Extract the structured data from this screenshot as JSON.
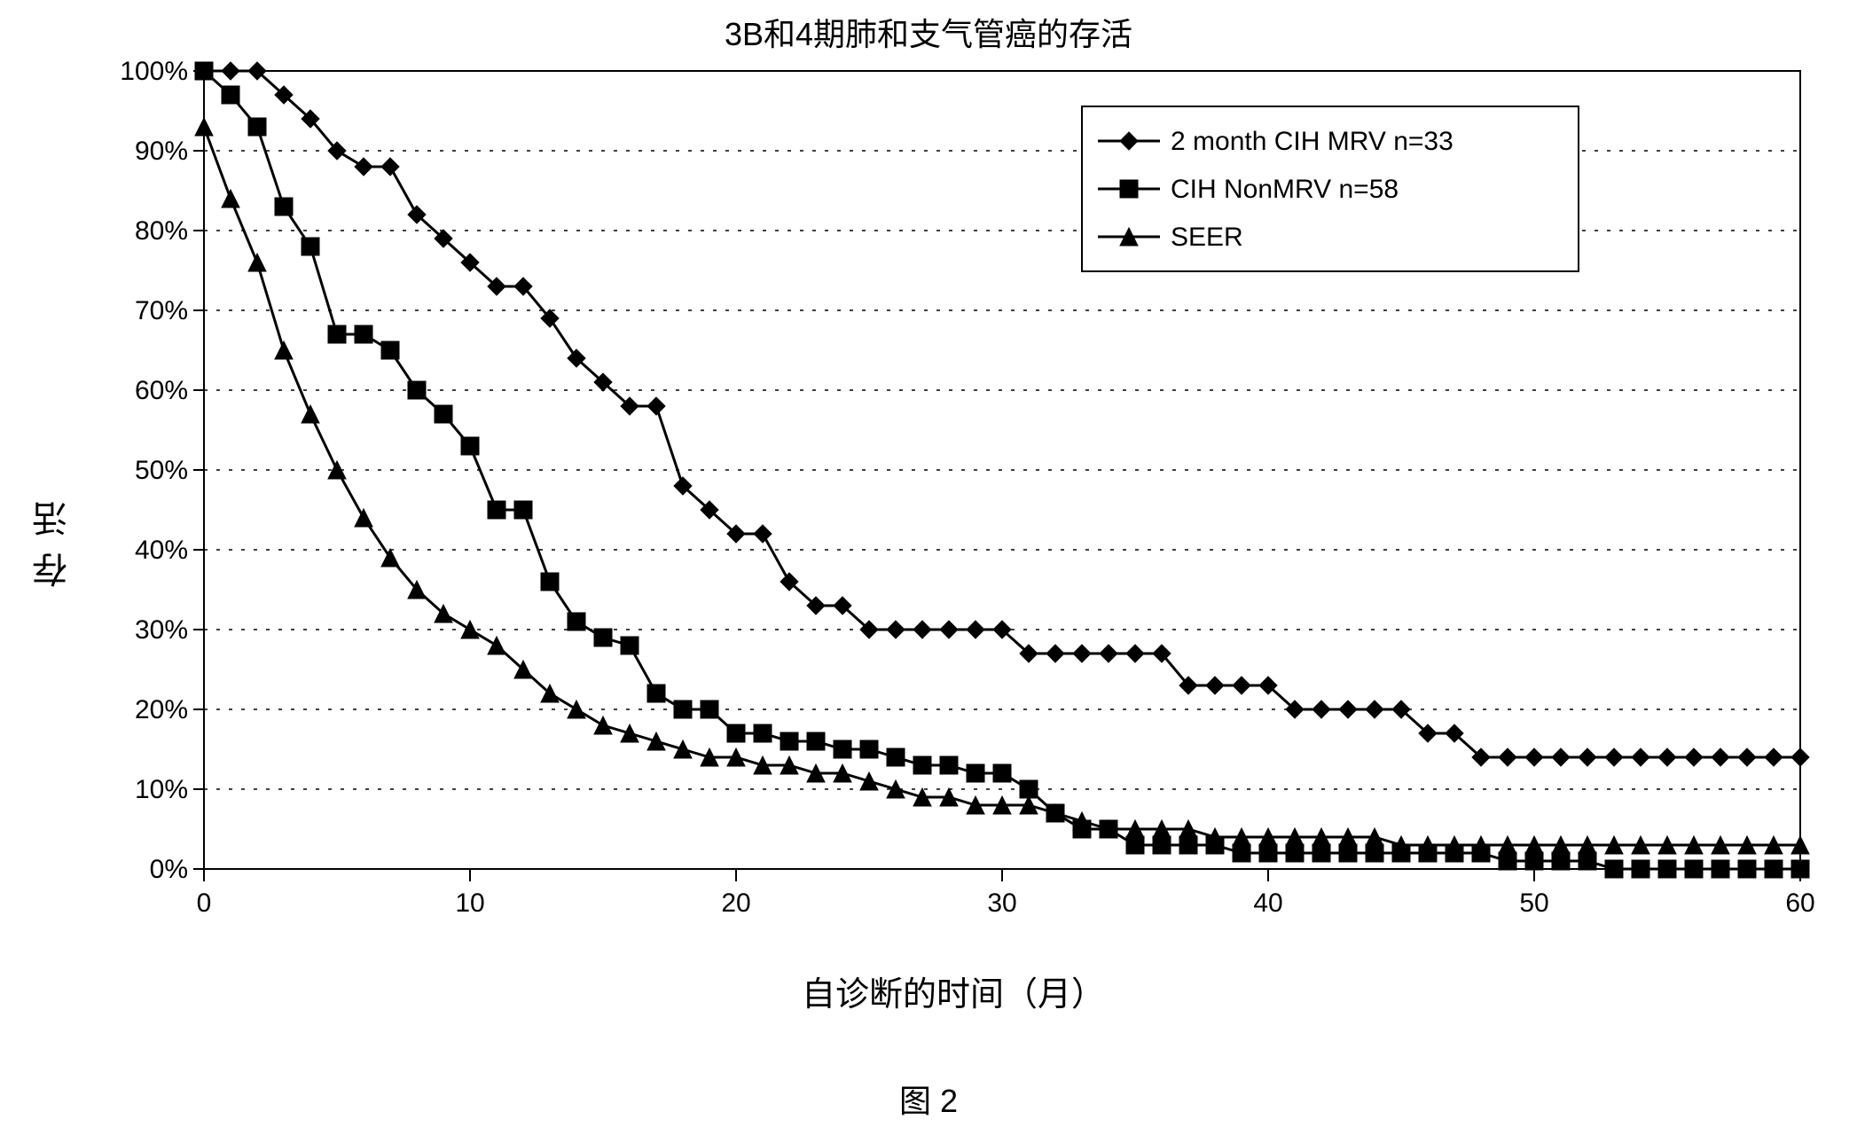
{
  "chart": {
    "type": "line",
    "title": "3B和4期肺和支气管癌的存活",
    "caption": "图 2",
    "x_label": "自诊断的时间（月）",
    "y_label": "存活",
    "background_color": "#ffffff",
    "grid_color": "#000000",
    "axis_color": "#000000",
    "title_fontsize": 36,
    "label_fontsize": 38,
    "tick_fontsize": 30,
    "legend_fontsize": 30,
    "line_width": 3,
    "marker_size": 10,
    "x": {
      "min": 0,
      "max": 60,
      "ticks": [
        0,
        10,
        20,
        30,
        40,
        50,
        60
      ],
      "tick_labels": [
        "0",
        "10",
        "20",
        "30",
        "40",
        "50",
        "60"
      ]
    },
    "y": {
      "min": 0,
      "max": 100,
      "ticks": [
        0,
        10,
        20,
        30,
        40,
        50,
        60,
        70,
        80,
        90,
        100
      ],
      "tick_labels": [
        "0%",
        "10%",
        "20%",
        "30%",
        "40%",
        "50%",
        "60%",
        "70%",
        "80%",
        "90%",
        "100%"
      ]
    },
    "legend": {
      "position": "top-right",
      "box_color": "#000000",
      "bg_color": "#ffffff"
    },
    "series": [
      {
        "name": "2 month CIH MRV  n=33",
        "marker": "diamond",
        "color": "#000000",
        "x": [
          0,
          1,
          2,
          3,
          4,
          5,
          6,
          7,
          8,
          9,
          10,
          11,
          12,
          13,
          14,
          15,
          16,
          17,
          18,
          19,
          20,
          21,
          22,
          23,
          24,
          25,
          26,
          27,
          28,
          29,
          30,
          31,
          32,
          33,
          34,
          35,
          36,
          37,
          38,
          39,
          40,
          41,
          42,
          43,
          44,
          45,
          46,
          47,
          48,
          49,
          50,
          51,
          52,
          53,
          54,
          55,
          56,
          57,
          58,
          59,
          60
        ],
        "y": [
          100,
          100,
          100,
          97,
          94,
          90,
          88,
          88,
          82,
          79,
          76,
          73,
          73,
          69,
          64,
          61,
          58,
          58,
          48,
          45,
          42,
          42,
          36,
          33,
          33,
          30,
          30,
          30,
          30,
          30,
          30,
          27,
          27,
          27,
          27,
          27,
          27,
          23,
          23,
          23,
          23,
          20,
          20,
          20,
          20,
          20,
          17,
          17,
          14,
          14,
          14,
          14,
          14,
          14,
          14,
          14,
          14,
          14,
          14,
          14,
          14
        ]
      },
      {
        "name": "CIH NonMRV n=58",
        "marker": "square",
        "color": "#000000",
        "x": [
          0,
          1,
          2,
          3,
          4,
          5,
          6,
          7,
          8,
          9,
          10,
          11,
          12,
          13,
          14,
          15,
          16,
          17,
          18,
          19,
          20,
          21,
          22,
          23,
          24,
          25,
          26,
          27,
          28,
          29,
          30,
          31,
          32,
          33,
          34,
          35,
          36,
          37,
          38,
          39,
          40,
          41,
          42,
          43,
          44,
          45,
          46,
          47,
          48,
          49,
          50,
          51,
          52,
          53,
          54,
          55,
          56,
          57,
          58,
          59,
          60
        ],
        "y": [
          100,
          97,
          93,
          83,
          78,
          67,
          67,
          65,
          60,
          57,
          53,
          45,
          45,
          36,
          31,
          29,
          28,
          22,
          20,
          20,
          17,
          17,
          16,
          16,
          15,
          15,
          14,
          13,
          13,
          12,
          12,
          10,
          7,
          5,
          5,
          3,
          3,
          3,
          3,
          2,
          2,
          2,
          2,
          2,
          2,
          2,
          2,
          2,
          2,
          1,
          1,
          1,
          1,
          0,
          0,
          0,
          0,
          0,
          0,
          0,
          0
        ]
      },
      {
        "name": "SEER",
        "marker": "triangle",
        "color": "#000000",
        "x": [
          0,
          1,
          2,
          3,
          4,
          5,
          6,
          7,
          8,
          9,
          10,
          11,
          12,
          13,
          14,
          15,
          16,
          17,
          18,
          19,
          20,
          21,
          22,
          23,
          24,
          25,
          26,
          27,
          28,
          29,
          30,
          31,
          32,
          33,
          34,
          35,
          36,
          37,
          38,
          39,
          40,
          41,
          42,
          43,
          44,
          45,
          46,
          47,
          48,
          49,
          50,
          51,
          52,
          53,
          54,
          55,
          56,
          57,
          58,
          59,
          60
        ],
        "y": [
          93,
          84,
          76,
          65,
          57,
          50,
          44,
          39,
          35,
          32,
          30,
          28,
          25,
          22,
          20,
          18,
          17,
          16,
          15,
          14,
          14,
          13,
          13,
          12,
          12,
          11,
          10,
          9,
          9,
          8,
          8,
          8,
          7,
          6,
          5,
          5,
          5,
          5,
          4,
          4,
          4,
          4,
          4,
          4,
          4,
          3,
          3,
          3,
          3,
          3,
          3,
          3,
          3,
          3,
          3,
          3,
          3,
          3,
          3,
          3,
          3
        ]
      }
    ]
  }
}
